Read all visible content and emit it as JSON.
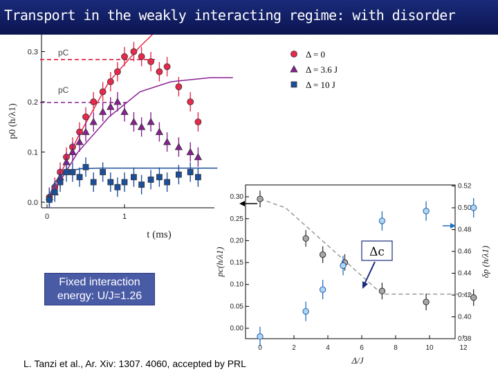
{
  "slide": {
    "title": "Transport in the weakly interacting regime: with disorder",
    "box_text_1": "Fixed interaction",
    "box_text_2": "energy: U/J=1.26",
    "citation": "L. Tanzi et al., Ar. Xiv: 1307. 4060, accepted by PRL"
  },
  "colors": {
    "title_bg": "#0f1c64",
    "red": "#e8294b",
    "purple": "#8a1f93",
    "blue": "#1b4f9c",
    "box": "#4a5ba6"
  },
  "chart_data": [
    {
      "type": "scatter",
      "xlabel": "t (ms)",
      "ylabel": "p0 (h/λ1)",
      "ylim": [
        0.0,
        0.3
      ],
      "xlim": [
        0.0,
        1.9
      ],
      "yticks": [
        "0.0",
        "0.1",
        "0.2",
        "0.3"
      ],
      "xticks": [
        "0",
        "1"
      ],
      "annotations": [
        "pC",
        "pC"
      ],
      "legend_position": "top-right",
      "series": [
        {
          "name": "Δ = 0",
          "marker": "circle",
          "color": "#e8294b",
          "x": [
            0.03,
            0.1,
            0.17,
            0.25,
            0.33,
            0.42,
            0.5,
            0.6,
            0.72,
            0.82,
            0.91,
            1.0,
            1.12,
            1.22,
            1.34,
            1.45,
            1.55,
            1.7,
            1.85,
            1.95
          ],
          "y": [
            0.01,
            0.03,
            0.06,
            0.09,
            0.11,
            0.14,
            0.17,
            0.2,
            0.22,
            0.24,
            0.26,
            0.29,
            0.3,
            0.29,
            0.28,
            0.26,
            0.27,
            0.23,
            0.2,
            0.16
          ],
          "fit_x": [
            0.0,
            0.4,
            0.8,
            1.2,
            1.4,
            1.9
          ],
          "fit_y": [
            0.0,
            0.13,
            0.24,
            0.31,
            0.34,
            0.4
          ]
        },
        {
          "name": "Δ = 3.6 J",
          "marker": "triangle",
          "color": "#8a1f93",
          "x": [
            0.03,
            0.1,
            0.17,
            0.25,
            0.33,
            0.42,
            0.5,
            0.6,
            0.72,
            0.82,
            0.91,
            1.0,
            1.12,
            1.22,
            1.34,
            1.45,
            1.55,
            1.7,
            1.85,
            1.95
          ],
          "y": [
            0.01,
            0.02,
            0.05,
            0.08,
            0.1,
            0.12,
            0.14,
            0.16,
            0.18,
            0.19,
            0.2,
            0.18,
            0.16,
            0.15,
            0.16,
            0.14,
            0.12,
            0.11,
            0.1,
            0.09
          ],
          "fit_x": [
            0.0,
            0.4,
            0.8,
            1.2,
            1.6,
            2.1,
            2.4
          ],
          "fit_y": [
            0.0,
            0.1,
            0.17,
            0.22,
            0.24,
            0.248,
            0.248
          ]
        },
        {
          "name": "Δ = 10 J",
          "marker": "square",
          "color": "#1b4f9c",
          "x": [
            0.03,
            0.1,
            0.17,
            0.25,
            0.33,
            0.42,
            0.5,
            0.6,
            0.72,
            0.82,
            0.91,
            1.0,
            1.12,
            1.22,
            1.34,
            1.45,
            1.55,
            1.7,
            1.85,
            1.95
          ],
          "y": [
            0.005,
            0.02,
            0.04,
            0.06,
            0.06,
            0.05,
            0.07,
            0.04,
            0.06,
            0.04,
            0.03,
            0.04,
            0.05,
            0.035,
            0.045,
            0.05,
            0.04,
            0.055,
            0.06,
            0.05
          ],
          "fit_x": [
            0.0,
            0.1,
            0.2,
            0.3,
            0.45,
            0.7,
            2.2
          ],
          "fit_y": [
            0.0,
            0.04,
            0.055,
            0.063,
            0.067,
            0.068,
            0.068
          ]
        }
      ]
    },
    {
      "type": "scatter",
      "xlabel": "Δ/J",
      "ylabel_left": "pc(h/λ1)",
      "ylabel_right": "δp (h/λ1)",
      "ylim_left": [
        0.0,
        0.3
      ],
      "ylim_right": [
        0.38,
        0.52
      ],
      "xlim": [
        0,
        13
      ],
      "xticks": [
        "0",
        "2",
        "4",
        "6",
        "8",
        "10",
        "12"
      ],
      "yticks_left": [
        "0.00",
        "0.05",
        "0.10",
        "0.15",
        "0.20",
        "0.25",
        "0.30"
      ],
      "yticks_right": [
        "0.38",
        "0.40",
        "0.42",
        "0.44",
        "0.46",
        "0.48",
        "0.50",
        "0.52"
      ],
      "annotation": "Δc",
      "series": [
        {
          "name": "pc",
          "axis": "left",
          "color": "#555555",
          "x": [
            0,
            2.7,
            3.7,
            5.0,
            7.2,
            9.8,
            12.6
          ],
          "y": [
            0.295,
            0.205,
            0.168,
            0.15,
            0.085,
            0.06,
            0.07
          ]
        },
        {
          "name": "δp",
          "axis": "right",
          "color": "#3a9ee0",
          "x": [
            0,
            2.7,
            3.7,
            4.9,
            7.2,
            9.8,
            12.6
          ],
          "y": [
            0.382,
            0.405,
            0.425,
            0.447,
            0.488,
            0.497,
            0.5
          ]
        }
      ]
    }
  ]
}
